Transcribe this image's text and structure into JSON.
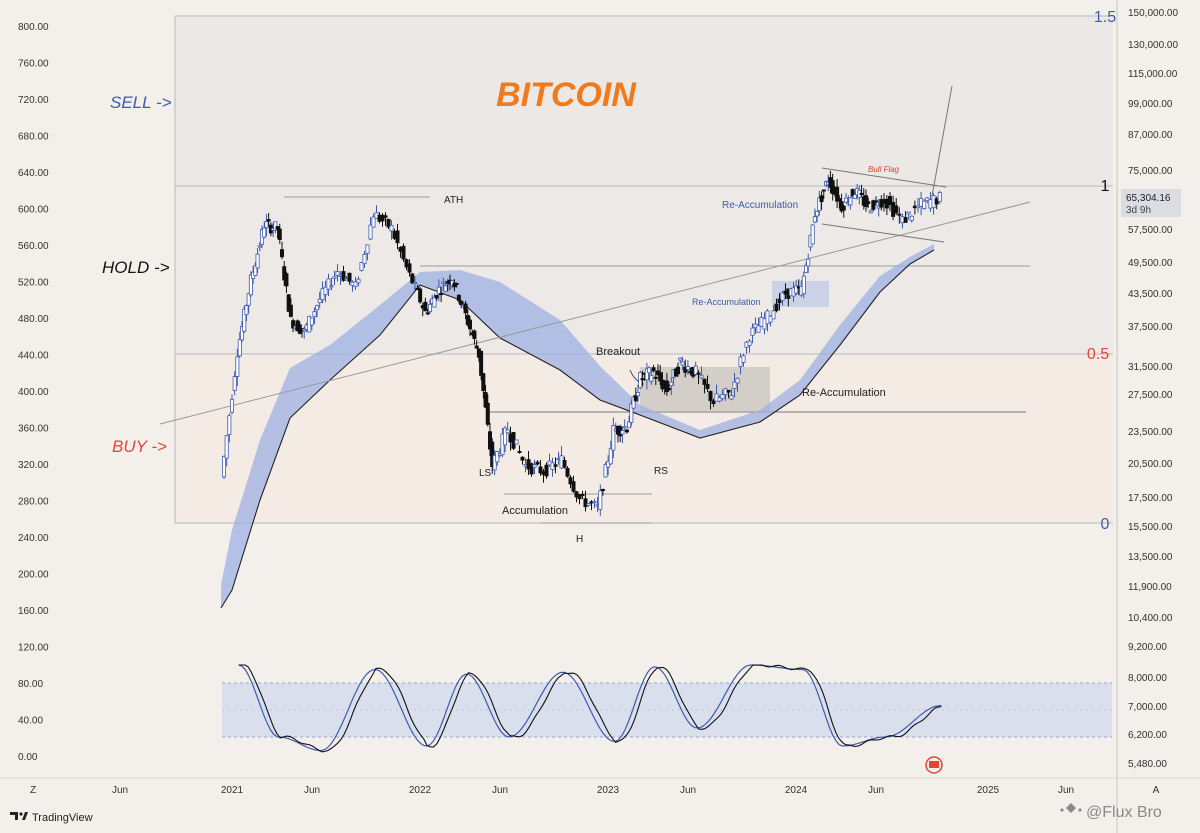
{
  "colors": {
    "background": "#f3efea",
    "title": "#f07a1e",
    "sell": "#3d5bb0",
    "buy": "#e0453a",
    "hold": "#111111",
    "band_fill": "#9fb0e3",
    "up_candle": "#3d5bb0",
    "down_candle": "#111111",
    "grid": "#b9b9b9",
    "accent_blue": "#3d5bb0",
    "accent_red": "#e0453a"
  },
  "icons": {
    "brand": "tradingview-logo-icon",
    "watermark": "binance-logo-icon",
    "badge": "event-flag-icon"
  },
  "chart_data": {
    "type": "candlestick",
    "title": "BITCOIN",
    "x_ticks": [
      "Z",
      "Jun",
      "2021",
      "Jun",
      "2022",
      "Jun",
      "2023",
      "Jun",
      "2024",
      "Jun",
      "2025",
      "Jun",
      "A"
    ],
    "y_left_ticks": [
      "800.00",
      "760.00",
      "720.00",
      "680.00",
      "640.00",
      "600.00",
      "560.00",
      "520.00",
      "480.00",
      "440.00",
      "400.00",
      "360.00",
      "320.00",
      "280.00",
      "240.00",
      "200.00",
      "160.00",
      "120.00",
      "80.00",
      "40.00",
      "0.00"
    ],
    "y_right_ticks": [
      "150,000.00",
      "130,000.00",
      "115,000.00",
      "99,000.00",
      "87,000.00",
      "75,000.00",
      "57,500.00",
      "49,500.00",
      "43,500.00",
      "37,500.00",
      "31,500.00",
      "27,500.00",
      "23,500.00",
      "20,500.00",
      "17,500.00",
      "15,500.00",
      "13,500.00",
      "11,900.00",
      "10,400.00",
      "9,200.00",
      "8,000.00",
      "7,000.00",
      "6,200.00",
      "5,480.00"
    ],
    "price_label": "65,304.16",
    "timer_label": "3d 9h",
    "fib_levels": [
      {
        "label": "1.5",
        "value": 1.5
      },
      {
        "label": "1",
        "value": 1
      },
      {
        "label": "0.5",
        "value": 0.5
      },
      {
        "label": "0",
        "value": 0
      }
    ],
    "zones": [
      {
        "label": "SELL ->",
        "from": 1.0,
        "to": 1.5
      },
      {
        "label": "HOLD ->",
        "from": 0.5,
        "to": 1.0
      },
      {
        "label": "BUY ->",
        "from": 0.0,
        "to": 0.5
      }
    ],
    "annotations": [
      "ATH",
      "Bull Flag",
      "Re-Accumulation",
      "Re-Accumulation",
      "Re-Accumulation",
      "Breakout",
      "LS",
      "RS",
      "H",
      "Accumulation"
    ],
    "series": [
      {
        "type": "close",
        "x": [
          "2020-12",
          "2021-01",
          "2021-02",
          "2021-03",
          "2021-04",
          "2021-05",
          "2021-06",
          "2021-07",
          "2021-08",
          "2021-09",
          "2021-10",
          "2021-11",
          "2021-12",
          "2022-01",
          "2022-02",
          "2022-03",
          "2022-04",
          "2022-05",
          "2022-06",
          "2022-07",
          "2022-08",
          "2022-09",
          "2022-10",
          "2022-11",
          "2022-12",
          "2023-01",
          "2023-02",
          "2023-03",
          "2023-04",
          "2023-05",
          "2023-06",
          "2023-07",
          "2023-08",
          "2023-09",
          "2023-10",
          "2023-11",
          "2023-12",
          "2024-01",
          "2024-02",
          "2024-03",
          "2024-04",
          "2024-05",
          "2024-06",
          "2024-07",
          "2024-08",
          "2024-09",
          "2024-10"
        ],
        "values": [
          19000,
          32000,
          45000,
          58000,
          57000,
          37000,
          35000,
          41000,
          47000,
          43500,
          61000,
          57000,
          46000,
          38500,
          43000,
          45500,
          38000,
          31500,
          20000,
          23300,
          20000,
          19500,
          20500,
          17200,
          16500,
          23100,
          23500,
          28500,
          29300,
          27200,
          30500,
          29200,
          26000,
          27000,
          34500,
          37700,
          42200,
          43000,
          61000,
          71000,
          63000,
          67500,
          62700,
          65000,
          59000,
          63500,
          65304
        ]
      },
      {
        "type": "stoch_rsi_k",
        "x": [
          "2021-01",
          "2021-04",
          "2021-07",
          "2021-10",
          "2022-01",
          "2022-04",
          "2022-07",
          "2022-10",
          "2023-01",
          "2023-04",
          "2023-07",
          "2023-10",
          "2024-01",
          "2024-04",
          "2024-07",
          "2024-10"
        ],
        "values": [
          100,
          20,
          5,
          95,
          10,
          90,
          20,
          92,
          15,
          98,
          30,
          100,
          95,
          10,
          20,
          55
        ]
      }
    ],
    "oscillator_band": [
      20,
      80
    ],
    "log_scale": true
  },
  "footer": {
    "brand": "TradingView",
    "watermark": "@Flux Bro"
  }
}
